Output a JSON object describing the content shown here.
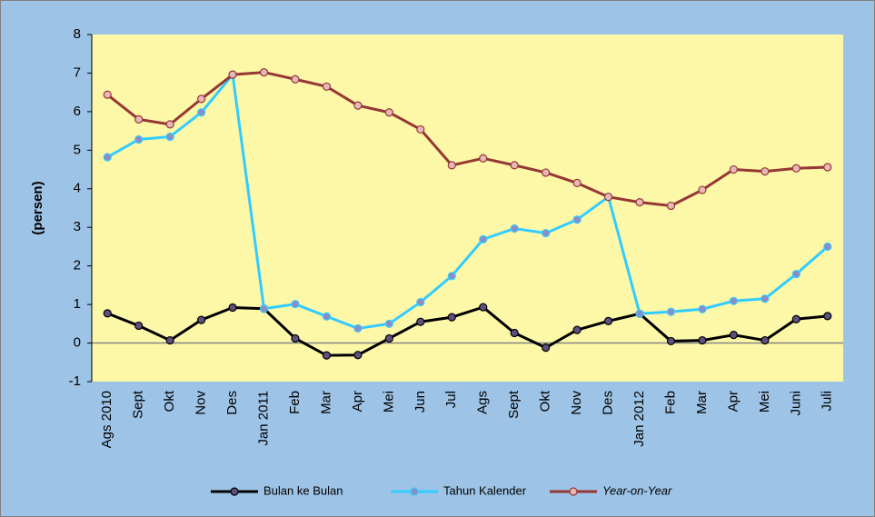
{
  "chart_data": {
    "type": "line",
    "y_label": "(persen)",
    "categories": [
      "Ags 2010",
      "Sept",
      "Okt",
      "Nov",
      "Des",
      "Jan 2011",
      "Feb",
      "Mar",
      "Apr",
      "Mei",
      "Jun",
      "Jul",
      "Ags",
      "Sept",
      "Okt",
      "Nov",
      "Des",
      "Jan 2012",
      "Feb",
      "Mar",
      "Apr",
      "Mei",
      "Juni",
      "Juli"
    ],
    "series": [
      {
        "name": "Bulan ke Bulan",
        "color": "#000000",
        "marker_color": "#5e4f7e",
        "values": [
          0.77,
          0.45,
          0.07,
          0.6,
          0.92,
          0.89,
          0.12,
          -0.32,
          -0.31,
          0.12,
          0.55,
          0.67,
          0.93,
          0.26,
          -0.12,
          0.34,
          0.57,
          0.76,
          0.05,
          0.07,
          0.21,
          0.07,
          0.62,
          0.7
        ]
      },
      {
        "name": "Tahun Kalender",
        "color": "#33ccff",
        "marker_color": "#8c8cc8",
        "values": [
          4.82,
          5.28,
          5.35,
          5.98,
          6.96,
          0.89,
          1.01,
          0.69,
          0.38,
          0.5,
          1.06,
          1.74,
          2.69,
          2.97,
          2.85,
          3.2,
          3.79,
          0.76,
          0.81,
          0.88,
          1.09,
          1.15,
          1.79,
          2.5
        ]
      },
      {
        "name": "Year-on-Year",
        "color": "#953735",
        "marker_color": "#e6b9b8",
        "legend_font_style": "italic",
        "values": [
          6.44,
          5.8,
          5.67,
          6.33,
          6.96,
          7.02,
          6.84,
          6.65,
          6.16,
          5.98,
          5.54,
          4.61,
          4.79,
          4.61,
          4.42,
          4.15,
          3.79,
          3.65,
          3.56,
          3.97,
          4.5,
          4.45,
          4.53,
          4.56
        ]
      }
    ],
    "ylim": [
      -1,
      8
    ],
    "yticks": [
      -1,
      0,
      1,
      2,
      3,
      4,
      5,
      6,
      7,
      8
    ],
    "background": "#9dc3e6",
    "plot_background": "#fdf7a8",
    "legend_position": "bottom"
  }
}
